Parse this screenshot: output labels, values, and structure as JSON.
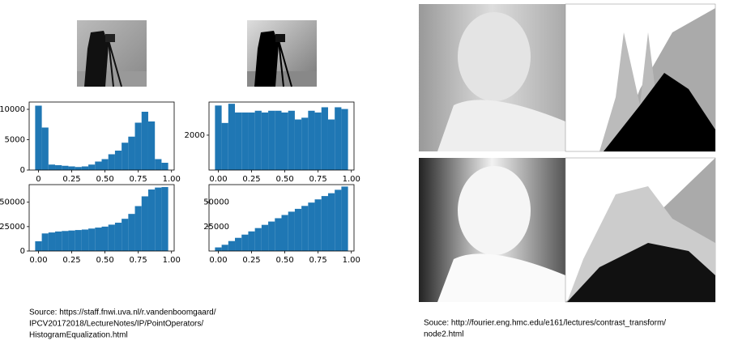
{
  "chart_data": [
    {
      "type": "histogram",
      "color": "#1f77b4",
      "bins": [
        -0.025,
        0.025,
        0.075,
        0.125,
        0.175,
        0.225,
        0.275,
        0.325,
        0.375,
        0.425,
        0.475,
        0.525,
        0.575,
        0.625,
        0.675,
        0.725,
        0.775,
        0.825,
        0.875,
        0.925,
        0.975
      ],
      "values": [
        10600,
        7000,
        900,
        800,
        700,
        600,
        500,
        600,
        900,
        1400,
        1800,
        2600,
        3200,
        4500,
        5500,
        7800,
        9600,
        8000,
        1800,
        1200
      ],
      "xlim": [
        -0.07,
        1.02
      ],
      "ylim": [
        0,
        11200
      ],
      "xticks": [
        {
          "value": 0,
          "label": "0"
        },
        {
          "value": 0.25,
          "label": "0.25"
        },
        {
          "value": 0.5,
          "label": "0.50"
        },
        {
          "value": 0.75,
          "label": "0.75"
        },
        {
          "value": 1,
          "label": "1.00"
        }
      ],
      "yticks": [
        0,
        5000,
        10000
      ]
    },
    {
      "type": "histogram",
      "color": "#1f77b4",
      "bins": [
        -0.025,
        0.025,
        0.075,
        0.125,
        0.175,
        0.225,
        0.275,
        0.325,
        0.375,
        0.425,
        0.475,
        0.525,
        0.575,
        0.625,
        0.675,
        0.725,
        0.775,
        0.825,
        0.875,
        0.925,
        0.975
      ],
      "values": [
        3700,
        2700,
        3800,
        3300,
        3300,
        3300,
        3400,
        3300,
        3400,
        3400,
        3300,
        3400,
        2900,
        3000,
        3400,
        3300,
        3600,
        2900,
        3600,
        3500
      ],
      "xlim": [
        -0.07,
        1.02
      ],
      "ylim": [
        0,
        3900
      ],
      "xticks": [
        {
          "value": 0,
          "label": "0.00"
        },
        {
          "value": 0.25,
          "label": "0.25"
        },
        {
          "value": 0.5,
          "label": "0.50"
        },
        {
          "value": 0.75,
          "label": "0.75"
        },
        {
          "value": 1,
          "label": "1.00"
        }
      ],
      "yticks": [
        2000
      ]
    },
    {
      "type": "histogram",
      "color": "#1f77b4",
      "bins": [
        -0.025,
        0.025,
        0.075,
        0.125,
        0.175,
        0.225,
        0.275,
        0.325,
        0.375,
        0.425,
        0.475,
        0.525,
        0.575,
        0.625,
        0.675,
        0.725,
        0.775,
        0.825,
        0.875,
        0.925,
        0.975
      ],
      "values": [
        10000,
        18000,
        19000,
        20000,
        20500,
        21000,
        21500,
        22000,
        23000,
        24000,
        25000,
        27000,
        29000,
        33000,
        38000,
        46000,
        56000,
        63000,
        65000,
        65500
      ],
      "xlim": [
        -0.07,
        1.02
      ],
      "ylim": [
        0,
        68000
      ],
      "xticks": [
        {
          "value": 0,
          "label": "0.00"
        },
        {
          "value": 0.25,
          "label": "0.25"
        },
        {
          "value": 0.5,
          "label": "0.50"
        },
        {
          "value": 0.75,
          "label": "0.75"
        },
        {
          "value": 1,
          "label": "1.00"
        }
      ],
      "yticks": [
        0,
        25000,
        50000
      ]
    },
    {
      "type": "histogram",
      "color": "#1f77b4",
      "bins": [
        -0.025,
        0.025,
        0.075,
        0.125,
        0.175,
        0.225,
        0.275,
        0.325,
        0.375,
        0.425,
        0.475,
        0.525,
        0.575,
        0.625,
        0.675,
        0.725,
        0.775,
        0.825,
        0.875,
        0.925,
        0.975
      ],
      "values": [
        3700,
        6400,
        10200,
        13500,
        16800,
        20100,
        23500,
        26800,
        30200,
        33600,
        36900,
        40300,
        43200,
        46200,
        49600,
        52900,
        56300,
        59200,
        62700,
        66000
      ],
      "xlim": [
        -0.07,
        1.02
      ],
      "ylim": [
        0,
        68000
      ],
      "xticks": [
        {
          "value": 0,
          "label": "0.00"
        },
        {
          "value": 0.25,
          "label": "0.25"
        },
        {
          "value": 0.5,
          "label": "0.50"
        },
        {
          "value": 0.75,
          "label": "0.75"
        },
        {
          "value": 1,
          "label": "1.00"
        }
      ],
      "yticks": [
        25000,
        50000
      ]
    }
  ],
  "source_left": [
    "Source: https://staff.fnwi.uva.nl/r.vandenboomgaard/",
    "IPCV20172018/LectureNotes/IP/PointOperators/",
    "HistogramEqualization.html"
  ],
  "source_right": [
    "Souce: http://fourier.eng.hmc.edu/e161/lectures/contrast_transform/",
    "node2.html"
  ]
}
